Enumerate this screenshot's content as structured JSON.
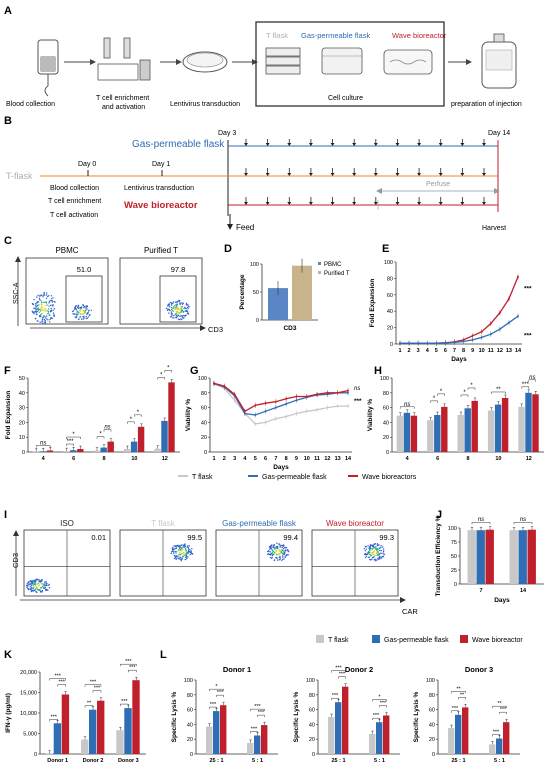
{
  "colors": {
    "tflask": "#c8c8c8",
    "gas": "#2f6db5",
    "wave": "#c0202b",
    "orange": "#e8892e",
    "pbmc": "#5b86c5",
    "purified": "#c8b48c"
  },
  "panelA": {
    "letter": "A",
    "steps": [
      "Blood collection",
      "T cell enrichment\nand activation",
      "Lentivirus transduction",
      "Cell culture",
      "preparation of injection"
    ],
    "flask_labels": [
      "T flask",
      "Gas-permeable flask",
      "Wave bioreactor"
    ]
  },
  "panelB": {
    "letter": "B",
    "gas_label": "Gas-permeable flask",
    "tflask_label": "T-flask",
    "wave_label": "Wave bioreactor",
    "day0": "Day 0",
    "day1": "Day 1",
    "day3": "Day 3",
    "day14": "Day 14",
    "day0_steps": [
      "Blood collection",
      "T cell enrichment",
      "T cell activation"
    ],
    "day1_step": "Lentivirus transduction",
    "perfuse": "Perfuse",
    "feed": "Feed",
    "harvest": "Harvest"
  },
  "panelC": {
    "letter": "C",
    "plots": [
      {
        "title": "PBMC",
        "value": "51.0"
      },
      {
        "title": "Purified T",
        "value": "97.8"
      }
    ],
    "ylabel": "SSC-A",
    "xlabel": "CD3"
  },
  "panelD": {
    "letter": "D",
    "chart_data": {
      "type": "bar",
      "categories": [
        "CD3"
      ],
      "series": [
        {
          "name": "PBMC",
          "values": [
            57
          ]
        },
        {
          "name": "Purified T",
          "values": [
            97
          ]
        }
      ],
      "ylabel": "Percentage",
      "ylim": [
        0,
        100
      ],
      "yticks": [
        "0",
        "50",
        "100"
      ],
      "xlabel": "CD3"
    }
  },
  "panelE": {
    "letter": "E",
    "chart_data": {
      "type": "line",
      "x": [
        1,
        2,
        3,
        4,
        5,
        6,
        7,
        8,
        9,
        10,
        11,
        12,
        13,
        14
      ],
      "series": [
        {
          "color": "#c0202b",
          "values": [
            1,
            1,
            1,
            1,
            1,
            1.5,
            2.5,
            5,
            10,
            15,
            25,
            38,
            55,
            82
          ]
        },
        {
          "color": "#2f6db5",
          "values": [
            1,
            1,
            1,
            1,
            1,
            1.3,
            2,
            3,
            5,
            8,
            12,
            18,
            26,
            34
          ]
        }
      ],
      "xlabel": "Days",
      "ylabel": "Fold Expansion",
      "ylim": [
        0,
        100
      ],
      "yticks": [
        "0",
        "20",
        "40",
        "60",
        "80",
        "100"
      ],
      "annotations": [
        "***",
        "***"
      ]
    }
  },
  "panelF": {
    "letter": "F",
    "chart_data": {
      "type": "bar",
      "categories": [
        "4",
        "6",
        "8",
        "10",
        "12"
      ],
      "series": [
        {
          "name": "T flask",
          "values": [
            0.3,
            0.6,
            1,
            2,
            2.2
          ]
        },
        {
          "name": "Gas-permeable flask",
          "values": [
            0.5,
            1.2,
            3,
            7,
            21
          ]
        },
        {
          "name": "Wave bioreactors",
          "values": [
            1,
            2,
            7,
            17,
            47
          ]
        }
      ],
      "ylabel": "Fold Expansion",
      "ylim": [
        0,
        50
      ],
      "yticks": [
        "0",
        "10",
        "20",
        "30",
        "40",
        "50"
      ],
      "sig": [
        "ns",
        "***",
        "*",
        "*",
        "ns",
        "*",
        "*",
        "*",
        "*"
      ]
    }
  },
  "panelG": {
    "letter": "G",
    "chart_data": {
      "type": "line",
      "x": [
        1,
        2,
        3,
        4,
        5,
        6,
        7,
        8,
        9,
        10,
        11,
        12,
        13,
        14
      ],
      "series": [
        {
          "name": "T flask",
          "values": [
            93,
            86,
            70,
            52,
            38,
            40,
            45,
            48,
            52,
            55,
            57,
            60,
            62,
            62
          ]
        },
        {
          "name": "Gas-permeable flask",
          "values": [
            92,
            88,
            76,
            52,
            50,
            55,
            60,
            65,
            70,
            74,
            77,
            78,
            80,
            80
          ]
        },
        {
          "name": "Wave bioreactors",
          "values": [
            93,
            89,
            78,
            55,
            63,
            66,
            68,
            72,
            75,
            75,
            78,
            80,
            80,
            83
          ]
        }
      ],
      "xlabel": "Days",
      "ylabel": "Viability %",
      "ylim": [
        0,
        100
      ],
      "yticks": [
        "0",
        "20",
        "40",
        "60",
        "80",
        "100"
      ],
      "annotations": [
        "ns",
        "***"
      ]
    }
  },
  "panelH": {
    "letter": "H",
    "chart_data": {
      "type": "bar",
      "categories": [
        "4",
        "6",
        "8",
        "10",
        "12"
      ],
      "series": [
        {
          "name": "T flask",
          "values": [
            49,
            43,
            50,
            56,
            61
          ]
        },
        {
          "name": "Gas-permeable flask",
          "values": [
            53,
            50,
            59,
            64,
            80
          ]
        },
        {
          "name": "Wave bioreactors",
          "values": [
            49,
            61,
            69,
            73,
            78
          ]
        }
      ],
      "ylabel": "Viability %",
      "ylim": [
        0,
        100
      ],
      "yticks": [
        "0",
        "20",
        "40",
        "60",
        "80",
        "100"
      ],
      "sig": [
        "ns",
        "*",
        "*",
        "*",
        "*",
        "**",
        "***",
        "ns"
      ]
    }
  },
  "legend1": {
    "items": [
      "T flask",
      "Gas-permeable flask",
      "Wave bioreactors"
    ]
  },
  "panelI": {
    "letter": "I",
    "plots": [
      {
        "title": "ISO",
        "value": "0.01"
      },
      {
        "title": "T flask",
        "value": "99.5"
      },
      {
        "title": "Gas-permeable flask",
        "value": "99.4"
      },
      {
        "title": "Wave bioreactor",
        "value": "99.3"
      }
    ],
    "ylabel": "CD3",
    "xlabel": "CAR"
  },
  "panelJ": {
    "letter": "J",
    "chart_data": {
      "type": "bar",
      "categories": [
        "7",
        "14"
      ],
      "series": [
        {
          "name": "T flask",
          "values": [
            96,
            96
          ]
        },
        {
          "name": "Gas-permeable flask",
          "values": [
            96,
            96
          ]
        },
        {
          "name": "Wave bioreactor",
          "values": [
            97,
            97
          ]
        }
      ],
      "xlabel": "Days",
      "ylabel": "Transduction Efficiency %",
      "ylim": [
        0,
        100
      ],
      "yticks": [
        "0",
        "25",
        "50",
        "75",
        "100"
      ],
      "sig": [
        "ns",
        "ns"
      ]
    }
  },
  "legend2": {
    "items": [
      "T flask",
      "Gas-permeable flask",
      "Wave bioreactor"
    ]
  },
  "panelK": {
    "letter": "K",
    "chart_data": {
      "type": "bar",
      "categories": [
        "Donor 1",
        "Donor 2",
        "Donor 3"
      ],
      "series": [
        {
          "name": "T flask",
          "values": [
            100,
            3500,
            5800
          ]
        },
        {
          "name": "Gas-permeable flask",
          "values": [
            7500,
            10800,
            11200
          ]
        },
        {
          "name": "Wave bioreactor",
          "values": [
            14500,
            13000,
            18000
          ]
        }
      ],
      "ylabel": "IFN-γ (pg/ml)",
      "ylim": [
        0,
        20000
      ],
      "yticks": [
        "0",
        "5,000",
        "10,000",
        "15,000",
        "20,000"
      ],
      "sig": [
        "***",
        "***",
        "***",
        "**",
        "***",
        "***",
        "***",
        "***",
        "***"
      ]
    }
  },
  "panelL": {
    "letter": "L",
    "ylabel": "Specific Lysis %",
    "charts": [
      {
        "title": "Donor 1",
        "categories": [
          "25 : 1",
          "5 : 1"
        ],
        "series": [
          {
            "name": "T flask",
            "values": [
              37,
              15
            ]
          },
          {
            "name": "Gas-permeable flask",
            "values": [
              58,
              25
            ]
          },
          {
            "name": "Wave bioreactor",
            "values": [
              66,
              39
            ]
          }
        ],
        "ylim": [
          0,
          100
        ],
        "yticks": [
          "0",
          "20",
          "40",
          "60",
          "80",
          "100"
        ],
        "sig": [
          "***",
          "***",
          "*",
          "***",
          "***",
          "***"
        ]
      },
      {
        "title": "Donor 2",
        "categories": [
          "25 : 1",
          "5 : 1"
        ],
        "series": [
          {
            "name": "T flask",
            "values": [
              50,
              27
            ]
          },
          {
            "name": "Gas-permeable flask",
            "values": [
              70,
              43
            ]
          },
          {
            "name": "Wave bioreactor",
            "values": [
              91,
              52
            ]
          }
        ],
        "ylim": [
          0,
          100
        ],
        "yticks": [
          "0",
          "20",
          "40",
          "60",
          "80",
          "100"
        ],
        "sig": [
          "***",
          "***",
          "***",
          "***",
          "***",
          "*"
        ]
      },
      {
        "title": "Donor 3",
        "categories": [
          "25 : 1",
          "5 : 1"
        ],
        "series": [
          {
            "name": "T flask",
            "values": [
              35,
              13
            ]
          },
          {
            "name": "Gas-permeable flask",
            "values": [
              53,
              21
            ]
          },
          {
            "name": "Wave bioreactor",
            "values": [
              63,
              43
            ]
          }
        ],
        "ylim": [
          0,
          100
        ],
        "yticks": [
          "0",
          "20",
          "40",
          "60",
          "80",
          "100"
        ],
        "sig": [
          "***",
          "**",
          "**",
          "***",
          "***",
          "**"
        ]
      }
    ]
  }
}
